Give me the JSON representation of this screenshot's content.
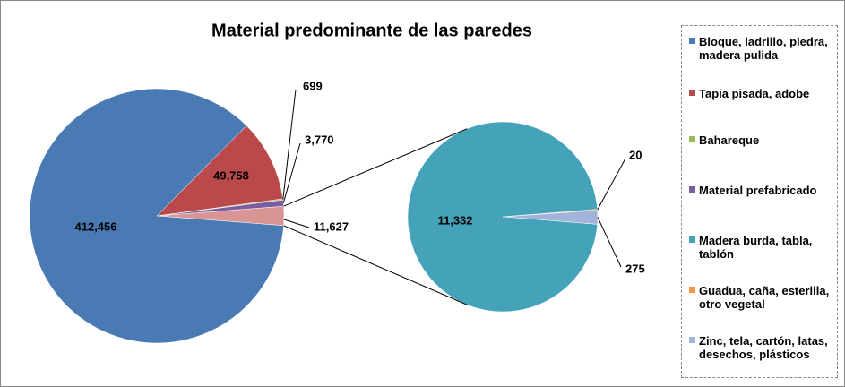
{
  "chart_data": {
    "type": "pie-of-pie",
    "title": "Material predominante de las paredes",
    "categories": [
      "Bloque, ladrillo, piedra, madera pulida",
      "Tapia pisada, adobe",
      "Bahareque",
      "Material prefabricado",
      "Madera burda, tabla, tablón",
      "Guadua, caña, esterilla, otro vegetal",
      "Zinc, tela, cartón, latas, desechos, plásticos"
    ],
    "colors": [
      "#4a7ab4",
      "#b9494a",
      "#9bbb59",
      "#7a5ea0",
      "#44a3b8",
      "#f79646",
      "#a3b4da"
    ],
    "values": [
      412456,
      49758,
      699,
      3770,
      11332,
      20,
      275
    ],
    "value_labels": [
      "412,456",
      "49,758",
      "699",
      "3,770",
      "11,332",
      "20",
      "275"
    ],
    "other": {
      "value": 11627,
      "label": "11,627",
      "color": "#d99594"
    },
    "secondary_count": 3
  }
}
